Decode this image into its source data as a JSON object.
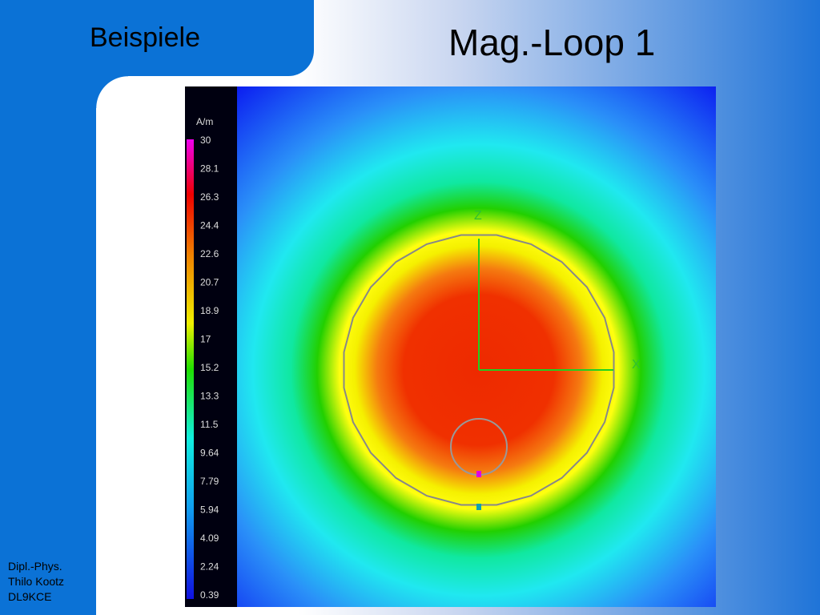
{
  "header": {
    "section": "Beispiele",
    "title": "Mag.-Loop 1"
  },
  "footer": {
    "lines": [
      "Dipl.-Phys.",
      "Thilo Kootz",
      "DL9KCE"
    ]
  },
  "plot": {
    "unit": "A/m",
    "scale_labels": [
      "30",
      "28.1",
      "26.3",
      "24.4",
      "22.6",
      "20.7",
      "18.9",
      "17",
      "15.2",
      "13.3",
      "11.5",
      "9.64",
      "7.79",
      "5.94",
      "4.09",
      "2.24",
      "0.39"
    ],
    "axis_z": "Z",
    "axis_x": "X"
  }
}
